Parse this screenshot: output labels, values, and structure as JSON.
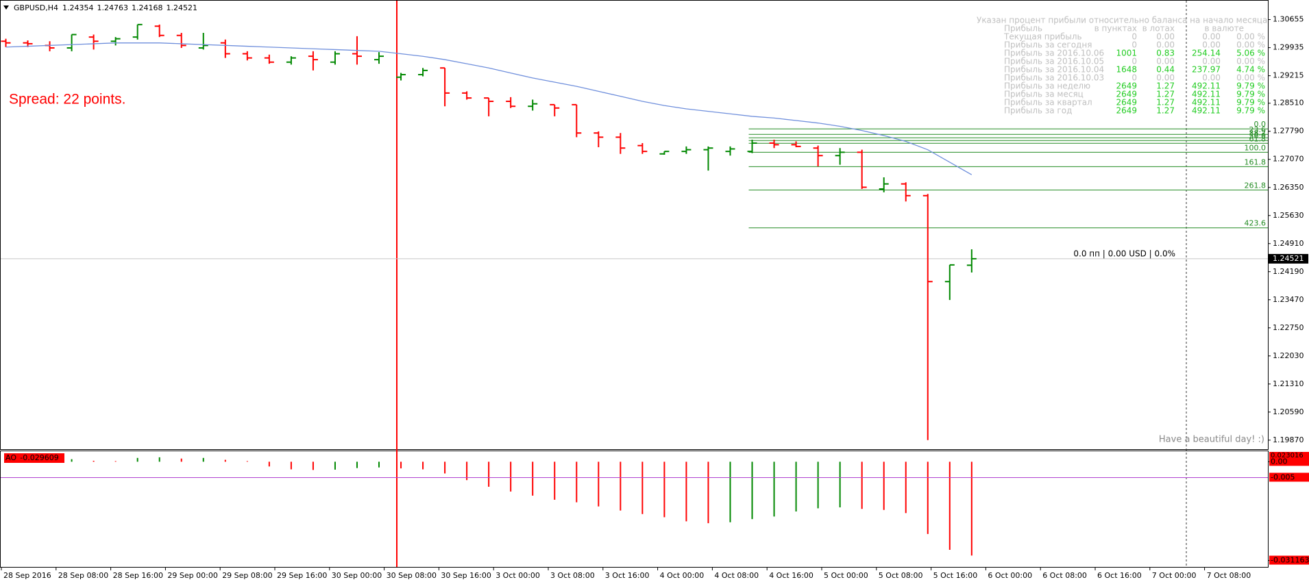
{
  "header": {
    "symbol": "GBPUSD,H4"
  },
  "spread_text": "Spread: 22 points.",
  "position_text": "0.0 пп | 0.00 USD | 0.0%",
  "greeting": "Have a beautiful day! :)",
  "profit_table": {
    "title": "Указан процент прибыли относительно баланса на начало месяца",
    "columns": [
      "Прибыль",
      "в пунктах",
      "в лотах",
      "в валюте"
    ],
    "rows": [
      [
        "Текущая прибыль",
        "0",
        "0.00",
        "0.00",
        "0.00 %"
      ],
      [
        "Прибыль за сегодня",
        "0",
        "0.00",
        "0.00",
        "0.00 %"
      ],
      [
        "Прибыль за 2016.10.06",
        "1001",
        "0.83",
        "254.14",
        "5.06 %"
      ],
      [
        "Прибыль за 2016.10.05",
        "0",
        "0.00",
        "0.00",
        "0.00 %"
      ],
      [
        "Прибыль за 2016.10.04",
        "1648",
        "0.44",
        "237.97",
        "4.74 %"
      ],
      [
        "Прибыль за 2016.10.03",
        "0",
        "0.00",
        "0.00",
        "0.00 %"
      ],
      [
        "Прибыль за неделю",
        "2649",
        "1.27",
        "492.11",
        "9.79 %"
      ],
      [
        "Прибыль за месяц",
        "2649",
        "1.27",
        "492.11",
        "9.79 %"
      ],
      [
        "Прибыль за квартал",
        "2649",
        "1.27",
        "492.11",
        "9.79 %"
      ],
      [
        "Прибыль за год",
        "2649",
        "1.27",
        "492.11",
        "9.79 %"
      ]
    ]
  },
  "chart_data": [
    {
      "type": "ohlc",
      "x_labels": [
        "28 Sep 2016",
        "28 Sep 08:00",
        "28 Sep 16:00",
        "29 Sep 00:00",
        "29 Sep 08:00",
        "29 Sep 16:00",
        "30 Sep 00:00",
        "30 Sep 08:00",
        "30 Sep 16:00",
        "3 Oct 00:00",
        "3 Oct 08:00",
        "3 Oct 16:00",
        "4 Oct 00:00",
        "4 Oct 08:00",
        "4 Oct 16:00",
        "5 Oct 00:00",
        "5 Oct 08:00",
        "5 Oct 16:00",
        "6 Oct 00:00",
        "6 Oct 08:00",
        "6 Oct 16:00",
        "7 Oct 00:00",
        "7 Oct 08:00"
      ],
      "open": [
        1.30099,
        1.30056,
        1.29992,
        1.29927,
        1.30206,
        1.30099,
        1.30206,
        1.30484,
        1.30249,
        1.29927,
        1.30056,
        1.29778,
        1.29671,
        1.29564,
        1.29714,
        1.29564,
        1.29778,
        1.29628,
        1.29178,
        1.29243,
        1.29414,
        1.28772,
        1.28644,
        1.28558,
        1.2843,
        1.28473,
        1.28473,
        1.27745,
        1.27638,
        1.27424,
        1.2721,
        1.27274,
        1.27317,
        1.27274,
        1.27274,
        1.27488,
        1.27445,
        1.2736,
        1.27167,
        1.27253,
        1.26311,
        1.26439,
        1.2614,
        1.23936,
        1.24354
      ],
      "high": [
        1.30163,
        1.3012,
        1.30099,
        1.3027,
        1.3027,
        1.30206,
        1.30527,
        1.30527,
        1.30313,
        1.30313,
        1.30142,
        1.29842,
        1.29756,
        1.29714,
        1.29842,
        1.29842,
        1.30228,
        1.2982,
        1.29286,
        1.29414,
        1.29414,
        1.28815,
        1.28644,
        1.28665,
        1.28601,
        1.28473,
        1.28473,
        1.27788,
        1.27745,
        1.27488,
        1.27274,
        1.27402,
        1.27402,
        1.27402,
        1.27574,
        1.27574,
        1.27531,
        1.27424,
        1.2736,
        1.27317,
        1.2661,
        1.26482,
        1.26183,
        1.24364,
        1.24763
      ],
      "low": [
        1.29949,
        1.29949,
        1.29842,
        1.29842,
        1.29885,
        1.29992,
        1.30142,
        1.30206,
        1.29927,
        1.29885,
        1.29671,
        1.29607,
        1.29521,
        1.295,
        1.2935,
        1.295,
        1.295,
        1.29521,
        1.29093,
        1.292,
        1.2843,
        1.28601,
        1.28173,
        1.28387,
        1.28322,
        1.28173,
        1.27638,
        1.27381,
        1.2721,
        1.2721,
        1.27189,
        1.2721,
        1.26782,
        1.27167,
        1.27231,
        1.2736,
        1.27381,
        1.26889,
        1.26932,
        1.26311,
        1.26225,
        1.2599,
        1.1987,
        1.23465,
        1.24168
      ],
      "close": [
        1.30056,
        1.30035,
        1.29927,
        1.3027,
        1.30099,
        1.30163,
        1.30527,
        1.30249,
        1.29992,
        1.29992,
        1.29778,
        1.29671,
        1.29564,
        1.29671,
        1.29628,
        1.29778,
        1.29714,
        1.29714,
        1.29243,
        1.2935,
        1.28772,
        1.28644,
        1.28558,
        1.2843,
        1.28494,
        1.28387,
        1.27745,
        1.27638,
        1.2736,
        1.27274,
        1.27274,
        1.27317,
        1.2736,
        1.27338,
        1.27488,
        1.27445,
        1.27402,
        1.27167,
        1.27253,
        1.26354,
        1.26439,
        1.2614,
        1.23936,
        1.24364,
        1.24521
      ],
      "colors": {
        "up": "#008800",
        "down": "#ff0000"
      },
      "ma": {
        "color": "#6f8fdc",
        "values": [
          1.29949,
          1.2997,
          1.29992,
          1.30013,
          1.30034,
          1.30056,
          1.30056,
          1.30056,
          1.30034,
          1.30013,
          1.29992,
          1.2997,
          1.29949,
          1.29927,
          1.29906,
          1.29885,
          1.29863,
          1.29842,
          1.29778,
          1.29713,
          1.29628,
          1.29521,
          1.29414,
          1.29285,
          1.29157,
          1.2905,
          1.28943,
          1.28815,
          1.28687,
          1.28558,
          1.28451,
          1.28365,
          1.28301,
          1.28237,
          1.28173,
          1.2813,
          1.28066,
          1.28002,
          1.27917,
          1.2781,
          1.27681,
          1.27531,
          1.27317,
          1.26996,
          1.26675
        ]
      },
      "fib": {
        "color": "#228b22",
        "levels": [
          {
            "label": "0.0",
            "value": 1.27852
          },
          {
            "label": "23.6",
            "value": 1.27711
          },
          {
            "label": "38.2",
            "value": 1.27624
          },
          {
            "label": "50.0",
            "value": 1.27553
          },
          {
            "label": "61.8",
            "value": 1.27482
          },
          {
            "label": "100.0",
            "value": 1.27253
          },
          {
            "label": "161.8",
            "value": 1.26883
          },
          {
            "label": "261.8",
            "value": 1.26284
          },
          {
            "label": "423.6",
            "value": 1.25315
          }
        ]
      },
      "ylim": [
        1.19656,
        1.31104
      ],
      "yticks": [
        1.30655,
        1.29935,
        1.29215,
        {
          "value": 1.2851,
          "label": "1.28510"
        },
        {
          "value": 1.2779,
          "label": "1.27790"
        },
        {
          "value": 1.2707,
          "label": "1.27070"
        },
        {
          "value": 1.2635,
          "label": "1.26350"
        },
        {
          "value": 1.2563,
          "label": "1.25630"
        },
        {
          "value": 1.2491,
          "label": "1.24910"
        },
        {
          "value": 1.2419,
          "label": "1.24190"
        },
        {
          "value": 1.2347,
          "label": "1.23470"
        },
        {
          "value": 1.2275,
          "label": "1.22750"
        },
        {
          "value": 1.2203,
          "label": "1.22030"
        },
        {
          "value": 1.2131,
          "label": "1.21310"
        },
        {
          "value": 1.2059,
          "label": "1.20590"
        },
        {
          "value": 1.1987,
          "label": "1.19870"
        }
      ]
    },
    {
      "type": "bar",
      "name": "AO",
      "values": [
        null,
        null,
        null,
        0.0008,
        0.0003,
        0.0002,
        0.0012,
        0.0014,
        0.001,
        0.0012,
        0.0006,
        0.0002,
        -0.0015,
        -0.0024,
        -0.0026,
        -0.0025,
        -0.002,
        -0.0018,
        -0.0021,
        -0.0024,
        -0.0037,
        -0.0058,
        -0.0079,
        -0.0094,
        -0.0107,
        -0.012,
        -0.0128,
        -0.0141,
        -0.0154,
        -0.0165,
        -0.0175,
        -0.0188,
        -0.0194,
        -0.0191,
        -0.0181,
        -0.0173,
        -0.0157,
        -0.0147,
        -0.0144,
        -0.0149,
        -0.0152,
        -0.0162,
        -0.0228,
        -0.0278,
        -0.029609
      ],
      "colors": {
        "up": "#008800",
        "down": "#ff0000"
      },
      "max_label": 0.023016,
      "levels": [
        -0.005
      ],
      "level_color": "#b040d0",
      "ylim": [
        -0.0332,
        0.0031
      ],
      "yticks": [
        {
          "value": 0,
          "label": "0.00"
        },
        -0.031163
      ]
    }
  ]
}
